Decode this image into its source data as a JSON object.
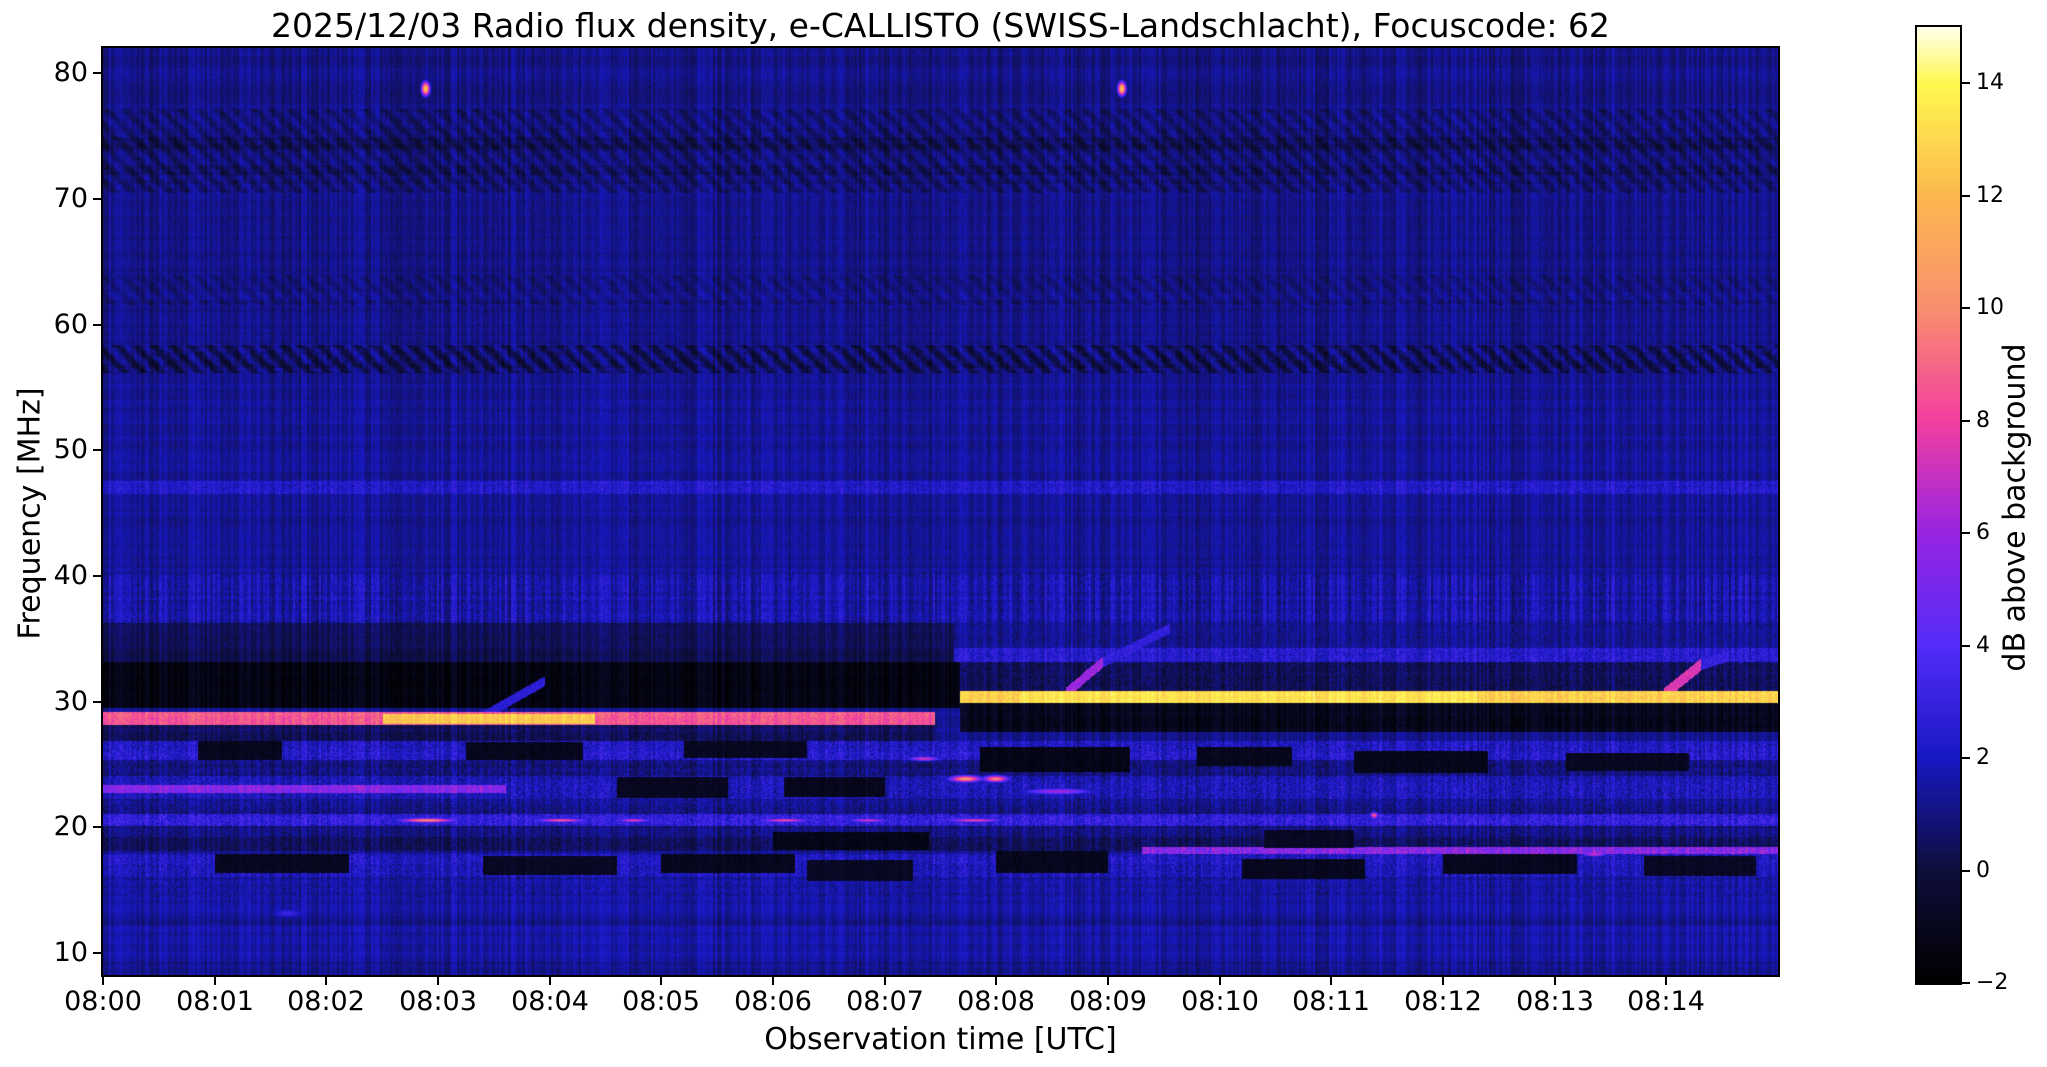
{
  "title": "2025/12/03  Radio flux density, e-CALLISTO (SWISS-Landschlacht), Focuscode: 62",
  "chart_data": {
    "type": "heatmap",
    "subtype": "radio-spectrogram",
    "title": "2025/12/03  Radio flux density, e-CALLISTO (SWISS-Landschlacht), Focuscode: 62",
    "xlabel": "Observation time [UTC]",
    "ylabel": "Frequency [MHz]",
    "date": "2025/12/03",
    "station": "SWISS-Landschlacht",
    "focuscode": "62",
    "x_ticks": [
      "08:00",
      "08:01",
      "08:02",
      "08:03",
      "08:04",
      "08:05",
      "08:06",
      "08:07",
      "08:08",
      "08:09",
      "08:10",
      "08:11",
      "08:12",
      "08:13",
      "08:14"
    ],
    "x_tick_minutes": [
      0,
      1,
      2,
      3,
      4,
      5,
      6,
      7,
      8,
      9,
      10,
      11,
      12,
      13,
      14
    ],
    "x_range_minutes": [
      0,
      15
    ],
    "y_ticks": [
      10,
      20,
      30,
      40,
      50,
      60,
      70,
      80
    ],
    "ylim": [
      8.25,
      82
    ],
    "grid": false,
    "legend": "none",
    "colorbar": {
      "label": "dB above background",
      "ticks": [
        "−2",
        "0",
        "2",
        "4",
        "6",
        "8",
        "10",
        "12",
        "14"
      ],
      "tick_values": [
        -2,
        0,
        2,
        4,
        6,
        8,
        10,
        12,
        14
      ],
      "range": [
        -2,
        15
      ],
      "stops": [
        {
          "v": -2,
          "rgb": [
            0,
            0,
            0
          ]
        },
        {
          "v": 0,
          "rgb": [
            14,
            14,
            60
          ]
        },
        {
          "v": 2,
          "rgb": [
            24,
            24,
            196
          ]
        },
        {
          "v": 4,
          "rgb": [
            84,
            44,
            248
          ]
        },
        {
          "v": 6,
          "rgb": [
            152,
            36,
            226
          ]
        },
        {
          "v": 8,
          "rgb": [
            242,
            63,
            160
          ]
        },
        {
          "v": 10,
          "rgb": [
            249,
            143,
            110
          ]
        },
        {
          "v": 12,
          "rgb": [
            252,
            184,
            78
          ]
        },
        {
          "v": 14,
          "rgb": [
            255,
            248,
            80
          ]
        },
        {
          "v": 15,
          "rgb": [
            255,
            255,
            235
          ]
        }
      ]
    },
    "background_levels_dB": {
      "above_58MHz": 1.12,
      "below_58MHz": 1.35
    },
    "bands": [
      {
        "f": [
          70.5,
          77.2
        ],
        "t": [
          0,
          15
        ],
        "dB": 1.0,
        "var": 0.55,
        "wave": 0.5
      },
      {
        "f": [
          74.0,
          74.9
        ],
        "t": [
          0,
          15
        ],
        "dB": 0.55,
        "var": 0.5,
        "wave": 0.6
      },
      {
        "f": [
          71.9,
          72.7
        ],
        "t": [
          0,
          15
        ],
        "dB": 0.6,
        "var": 0.5,
        "wave": 0.6
      },
      {
        "f": [
          61.5,
          64.0
        ],
        "t": [
          0,
          15
        ],
        "dB": 1.1,
        "var": 0.5,
        "wave": 0.35
      },
      {
        "f": [
          56.2,
          58.4
        ],
        "t": [
          0,
          15
        ],
        "dB": 0.8,
        "var": 0.7,
        "wave": 0.9
      },
      {
        "f": [
          46.6,
          47.6
        ],
        "t": [
          0,
          15
        ],
        "dB": 2.2,
        "var": 1.1
      },
      {
        "f": [
          36.3,
          40.2
        ],
        "t": [
          0,
          15
        ],
        "dB": 1.7,
        "var": 0.9,
        "stripe": 0.9
      },
      {
        "f": [
          34.3,
          36.3
        ],
        "t": [
          0,
          7.62
        ],
        "dB": 0.5,
        "var": 0.55
      },
      {
        "f": [
          34.3,
          36.3
        ],
        "t": [
          7.62,
          15
        ],
        "dB": 1.3,
        "var": 0.8
      },
      {
        "f": [
          33.2,
          34.3
        ],
        "t": [
          0,
          7.62
        ],
        "dB": 0.2,
        "var": 0.45
      },
      {
        "f": [
          33.2,
          34.3
        ],
        "t": [
          7.62,
          15
        ],
        "dB": 2.4,
        "var": 1.3
      },
      {
        "f": [
          29.55,
          33.2
        ],
        "t": [
          0,
          7.67
        ],
        "dB": -1.3,
        "var": 0.35
      },
      {
        "f": [
          30.9,
          33.2
        ],
        "t": [
          7.67,
          15
        ],
        "dB": 0.5,
        "var": 1.0
      },
      {
        "f": [
          29.9,
          30.9
        ],
        "t": [
          7.67,
          15
        ],
        "dB": 12.8,
        "var": 1.1
      },
      {
        "f": [
          29.95,
          30.85
        ],
        "t": [
          8.2,
          12.3
        ],
        "dB": 13.4,
        "var": 0.8
      },
      {
        "f": [
          27.6,
          29.9
        ],
        "t": [
          7.67,
          15
        ],
        "dB": -1.0,
        "var": 0.7
      },
      {
        "f": [
          28.15,
          29.25
        ],
        "t": [
          0,
          7.45
        ],
        "dB": 8.6,
        "var": 1.1
      },
      {
        "f": [
          28.3,
          29.1
        ],
        "t": [
          2.5,
          4.4
        ],
        "dB": 12.6,
        "var": 1.0
      },
      {
        "f": [
          26.9,
          28.15
        ],
        "t": [
          0,
          7.45
        ],
        "dB": 0.5,
        "var": 0.8
      },
      {
        "f": [
          25.4,
          26.9
        ],
        "t": [
          0,
          15
        ],
        "dB": 2.3,
        "var": 1.4,
        "stripe": 0.5
      },
      {
        "f": [
          24.1,
          25.4
        ],
        "t": [
          0,
          15
        ],
        "dB": 1.0,
        "var": 1.1
      },
      {
        "f": [
          22.3,
          24.1
        ],
        "t": [
          0,
          15
        ],
        "dB": 2.0,
        "var": 1.4,
        "stripe": 0.4
      },
      {
        "f": [
          22.75,
          23.45
        ],
        "t": [
          0,
          3.6
        ],
        "dB": 5.5,
        "var": 1.6
      },
      {
        "f": [
          21.1,
          22.3
        ],
        "t": [
          0,
          15
        ],
        "dB": 1.2,
        "var": 1.0
      },
      {
        "f": [
          20.15,
          21.1
        ],
        "t": [
          0,
          15
        ],
        "dB": 2.8,
        "var": 1.6
      },
      {
        "f": [
          19.3,
          20.15
        ],
        "t": [
          0,
          15
        ],
        "dB": 1.0,
        "var": 0.9
      },
      {
        "f": [
          18.2,
          19.3
        ],
        "t": [
          0,
          15
        ],
        "dB": 0.5,
        "var": 0.9
      },
      {
        "f": [
          17.55,
          18.45
        ],
        "t": [
          9.3,
          15
        ],
        "dB": 5.5,
        "var": 2.2
      },
      {
        "f": [
          16.1,
          17.9
        ],
        "t": [
          0,
          15
        ],
        "dB": 2.1,
        "var": 1.3,
        "stripe": 0.5
      },
      {
        "f": [
          14.4,
          16.1
        ],
        "t": [
          0,
          15
        ],
        "dB": 1.5,
        "var": 0.9
      },
      {
        "f": [
          8.2,
          14.4
        ],
        "t": [
          0,
          15
        ],
        "dB": 1.6,
        "var": 0.5,
        "stripe": 0.4
      },
      {
        "f": [
          12.2,
          13.0
        ],
        "t": [
          0,
          15
        ],
        "dB": 1.15,
        "var": 0.5
      },
      {
        "f": [
          8.2,
          9.3
        ],
        "t": [
          0,
          15
        ],
        "dB": 1.2,
        "var": 0.5
      }
    ],
    "dark_patches": [
      {
        "f": [
          25.4,
          26.9
        ],
        "t": [
          0.85,
          1.6
        ],
        "dB": -1.0
      },
      {
        "f": [
          25.4,
          26.8
        ],
        "t": [
          3.25,
          4.3
        ],
        "dB": -1.0
      },
      {
        "f": [
          25.5,
          26.9
        ],
        "t": [
          5.2,
          6.3
        ],
        "dB": -0.9
      },
      {
        "f": [
          24.4,
          26.4
        ],
        "t": [
          7.85,
          9.2
        ],
        "dB": -1.2
      },
      {
        "f": [
          24.9,
          26.4
        ],
        "t": [
          9.8,
          10.65
        ],
        "dB": -1.0
      },
      {
        "f": [
          24.3,
          26.1
        ],
        "t": [
          11.2,
          12.4
        ],
        "dB": -1.1
      },
      {
        "f": [
          24.5,
          25.9
        ],
        "t": [
          13.1,
          14.2
        ],
        "dB": -0.9
      },
      {
        "f": [
          16.4,
          17.9
        ],
        "t": [
          1.0,
          2.2
        ],
        "dB": -0.9
      },
      {
        "f": [
          16.2,
          17.7
        ],
        "t": [
          3.4,
          4.6
        ],
        "dB": -0.8
      },
      {
        "f": [
          16.4,
          17.9
        ],
        "t": [
          5.0,
          6.2
        ],
        "dB": -1.0
      },
      {
        "f": [
          15.7,
          17.4
        ],
        "t": [
          6.3,
          7.25
        ],
        "dB": -0.8
      },
      {
        "f": [
          16.4,
          18.1
        ],
        "t": [
          8.0,
          9.0
        ],
        "dB": -1.0
      },
      {
        "f": [
          15.9,
          17.5
        ],
        "t": [
          10.2,
          11.3
        ],
        "dB": -0.9
      },
      {
        "f": [
          16.3,
          17.9
        ],
        "t": [
          12.0,
          13.2
        ],
        "dB": -1.0
      },
      {
        "f": [
          16.1,
          17.7
        ],
        "t": [
          13.8,
          14.8
        ],
        "dB": -0.8
      },
      {
        "f": [
          18.2,
          19.6
        ],
        "t": [
          6.0,
          7.4
        ],
        "dB": -1.2
      },
      {
        "f": [
          18.4,
          19.8
        ],
        "t": [
          10.4,
          11.2
        ],
        "dB": -0.8
      },
      {
        "f": [
          22.3,
          24.0
        ],
        "t": [
          4.6,
          5.6
        ],
        "dB": -0.9
      },
      {
        "f": [
          22.4,
          24.0
        ],
        "t": [
          6.1,
          7.0
        ],
        "dB": -1.0
      }
    ],
    "bursts": [
      {
        "t": 2.885,
        "f": 78.8,
        "dt": 0.05,
        "df": 1.5,
        "dB": 12.5,
        "note": "point burst 08:02:53"
      },
      {
        "t": 9.12,
        "f": 78.8,
        "dt": 0.05,
        "df": 1.5,
        "dB": 12.5,
        "note": "point burst 08:09:07"
      },
      {
        "t": 7.35,
        "f": 25.5,
        "dt": 0.2,
        "df": 0.5,
        "dB": 7.5
      },
      {
        "t": 7.72,
        "f": 23.9,
        "dt": 0.2,
        "df": 0.75,
        "dB": 10.5
      },
      {
        "t": 7.99,
        "f": 23.9,
        "dt": 0.16,
        "df": 0.75,
        "dB": 9.8
      },
      {
        "t": 8.55,
        "f": 22.9,
        "dt": 0.45,
        "df": 0.7,
        "dB": 6.3
      },
      {
        "t": 11.38,
        "f": 21.0,
        "dt": 0.05,
        "df": 0.7,
        "dB": 9.0
      },
      {
        "t": 2.9,
        "f": 20.6,
        "dt": 0.35,
        "df": 0.45,
        "dB": 10.5
      },
      {
        "t": 4.1,
        "f": 20.6,
        "dt": 0.3,
        "df": 0.4,
        "dB": 9.0
      },
      {
        "t": 4.75,
        "f": 20.6,
        "dt": 0.2,
        "df": 0.4,
        "dB": 8.0
      },
      {
        "t": 6.1,
        "f": 20.6,
        "dt": 0.3,
        "df": 0.4,
        "dB": 8.5
      },
      {
        "t": 6.85,
        "f": 20.6,
        "dt": 0.25,
        "df": 0.4,
        "dB": 7.5
      },
      {
        "t": 7.8,
        "f": 20.6,
        "dt": 0.35,
        "df": 0.4,
        "dB": 8.3
      },
      {
        "t": 13.35,
        "f": 17.9,
        "dt": 0.15,
        "df": 0.5,
        "dB": 7.5
      },
      {
        "t": 1.65,
        "f": 13.2,
        "dt": 0.25,
        "df": 1.2,
        "dB": 3.2
      }
    ],
    "drifting_features": [
      {
        "t0": 3.35,
        "f0": 28.6,
        "t1": 3.95,
        "f1": 31.6,
        "dB": 2.6,
        "w": 0.35
      },
      {
        "t0": 8.62,
        "f0": 30.7,
        "t1": 8.95,
        "f1": 33.1,
        "dB": 6.0,
        "w": 0.4
      },
      {
        "t0": 8.95,
        "f0": 33.1,
        "t1": 9.55,
        "f1": 35.8,
        "dB": 2.8,
        "w": 0.35
      },
      {
        "t0": 13.98,
        "f0": 30.6,
        "t1": 14.3,
        "f1": 32.9,
        "dB": 7.5,
        "w": 0.45
      },
      {
        "t0": 14.3,
        "f0": 32.9,
        "t1": 14.55,
        "f1": 33.6,
        "dB": 3.0,
        "w": 0.35
      }
    ]
  }
}
